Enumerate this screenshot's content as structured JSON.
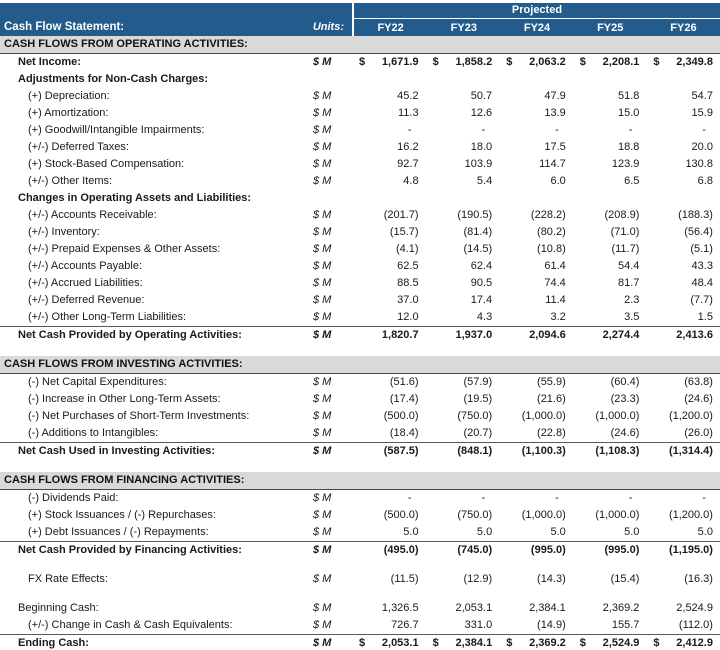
{
  "header": {
    "title": "Cash Flow Statement:",
    "units_label": "Units:",
    "projected_label": "Projected",
    "columns": [
      "FY22",
      "FY23",
      "FY24",
      "FY25",
      "FY26"
    ],
    "colors": {
      "header_bg": "#235C8C",
      "header_text": "#FFFFFF",
      "section_bg": "#D9D9D9"
    }
  },
  "rows": [
    {
      "t": "section",
      "label": "CASH FLOWS FROM OPERATING ACTIVITIES:"
    },
    {
      "t": "row",
      "label": "Net Income:",
      "units": "$ M",
      "indent": 1,
      "bold": true,
      "dollar": true,
      "values": [
        "1,671.9",
        "1,858.2",
        "2,063.2",
        "2,208.1",
        "2,349.8"
      ]
    },
    {
      "t": "row",
      "label": "Adjustments for Non-Cash Charges:",
      "indent": 1,
      "bold": true
    },
    {
      "t": "row",
      "label": "(+) Depreciation:",
      "units": "$ M",
      "indent": 2,
      "values": [
        "45.2",
        "50.7",
        "47.9",
        "51.8",
        "54.7"
      ]
    },
    {
      "t": "row",
      "label": "(+) Amortization:",
      "units": "$ M",
      "indent": 2,
      "values": [
        "11.3",
        "12.6",
        "13.9",
        "15.0",
        "15.9"
      ]
    },
    {
      "t": "row",
      "label": "(+) Goodwill/Intangible Impairments:",
      "units": "$ M",
      "indent": 2,
      "values": [
        "-",
        "-",
        "-",
        "-",
        "-"
      ]
    },
    {
      "t": "row",
      "label": "(+/-) Deferred Taxes:",
      "units": "$ M",
      "indent": 2,
      "values": [
        "16.2",
        "18.0",
        "17.5",
        "18.8",
        "20.0"
      ]
    },
    {
      "t": "row",
      "label": "(+) Stock-Based Compensation:",
      "units": "$ M",
      "indent": 2,
      "values": [
        "92.7",
        "103.9",
        "114.7",
        "123.9",
        "130.8"
      ]
    },
    {
      "t": "row",
      "label": "(+/-) Other Items:",
      "units": "$ M",
      "indent": 2,
      "values": [
        "4.8",
        "5.4",
        "6.0",
        "6.5",
        "6.8"
      ]
    },
    {
      "t": "row",
      "label": "Changes in Operating Assets and Liabilities:",
      "indent": 1,
      "bold": true
    },
    {
      "t": "row",
      "label": "(+/-) Accounts Receivable:",
      "units": "$ M",
      "indent": 2,
      "values": [
        "(201.7)",
        "(190.5)",
        "(228.2)",
        "(208.9)",
        "(188.3)"
      ]
    },
    {
      "t": "row",
      "label": "(+/-) Inventory:",
      "units": "$ M",
      "indent": 2,
      "values": [
        "(15.7)",
        "(81.4)",
        "(80.2)",
        "(71.0)",
        "(56.4)"
      ]
    },
    {
      "t": "row",
      "label": "(+/-) Prepaid Expenses & Other Assets:",
      "units": "$ M",
      "indent": 2,
      "values": [
        "(4.1)",
        "(14.5)",
        "(10.8)",
        "(11.7)",
        "(5.1)"
      ]
    },
    {
      "t": "row",
      "label": "(+/-) Accounts Payable:",
      "units": "$ M",
      "indent": 2,
      "values": [
        "62.5",
        "62.4",
        "61.4",
        "54.4",
        "43.3"
      ]
    },
    {
      "t": "row",
      "label": "(+/-) Accrued Liabilities:",
      "units": "$ M",
      "indent": 2,
      "values": [
        "88.5",
        "90.5",
        "74.4",
        "81.7",
        "48.4"
      ]
    },
    {
      "t": "row",
      "label": "(+/-) Deferred Revenue:",
      "units": "$ M",
      "indent": 2,
      "values": [
        "37.0",
        "17.4",
        "11.4",
        "2.3",
        "(7.7)"
      ]
    },
    {
      "t": "row",
      "label": "(+/-) Other Long-Term Liabilities:",
      "units": "$ M",
      "indent": 2,
      "values": [
        "12.0",
        "4.3",
        "3.2",
        "3.5",
        "1.5"
      ]
    },
    {
      "t": "total",
      "label": "Net Cash Provided by Operating Activities:",
      "units": "$ M",
      "indent": 1,
      "values": [
        "1,820.7",
        "1,937.0",
        "2,094.6",
        "2,274.4",
        "2,413.6"
      ]
    },
    {
      "t": "blank"
    },
    {
      "t": "section",
      "label": "CASH FLOWS FROM INVESTING ACTIVITIES:"
    },
    {
      "t": "row",
      "label": "(-) Net Capital Expenditures:",
      "units": "$ M",
      "indent": 2,
      "values": [
        "(51.6)",
        "(57.9)",
        "(55.9)",
        "(60.4)",
        "(63.8)"
      ]
    },
    {
      "t": "row",
      "label": "(-) Increase in Other Long-Term Assets:",
      "units": "$ M",
      "indent": 2,
      "values": [
        "(17.4)",
        "(19.5)",
        "(21.6)",
        "(23.3)",
        "(24.6)"
      ]
    },
    {
      "t": "row",
      "label": "(-) Net Purchases of Short-Term Investments:",
      "units": "$ M",
      "indent": 2,
      "values": [
        "(500.0)",
        "(750.0)",
        "(1,000.0)",
        "(1,000.0)",
        "(1,200.0)"
      ]
    },
    {
      "t": "row",
      "label": "(-) Additions to Intangibles:",
      "units": "$ M",
      "indent": 2,
      "values": [
        "(18.4)",
        "(20.7)",
        "(22.8)",
        "(24.6)",
        "(26.0)"
      ]
    },
    {
      "t": "total",
      "label": "Net Cash Used in Investing Activities:",
      "units": "$ M",
      "indent": 1,
      "values": [
        "(587.5)",
        "(848.1)",
        "(1,100.3)",
        "(1,108.3)",
        "(1,314.4)"
      ]
    },
    {
      "t": "blank"
    },
    {
      "t": "section",
      "label": "CASH FLOWS FROM FINANCING ACTIVITIES:"
    },
    {
      "t": "row",
      "label": "(-) Dividends Paid:",
      "units": "$ M",
      "indent": 2,
      "values": [
        "-",
        "-",
        "-",
        "-",
        "-"
      ]
    },
    {
      "t": "row",
      "label": "(+) Stock Issuances / (-) Repurchases:",
      "units": "$ M",
      "indent": 2,
      "values": [
        "(500.0)",
        "(750.0)",
        "(1,000.0)",
        "(1,000.0)",
        "(1,200.0)"
      ]
    },
    {
      "t": "row",
      "label": "(+) Debt Issuances / (-) Repayments:",
      "units": "$ M",
      "indent": 2,
      "values": [
        "5.0",
        "5.0",
        "5.0",
        "5.0",
        "5.0"
      ]
    },
    {
      "t": "total",
      "label": "Net Cash Provided by Financing Activities:",
      "units": "$ M",
      "indent": 1,
      "values": [
        "(495.0)",
        "(745.0)",
        "(995.0)",
        "(995.0)",
        "(1,195.0)"
      ]
    },
    {
      "t": "blank"
    },
    {
      "t": "row",
      "label": "FX Rate Effects:",
      "units": "$ M",
      "indent": 2,
      "values": [
        "(11.5)",
        "(12.9)",
        "(14.3)",
        "(15.4)",
        "(16.3)"
      ]
    },
    {
      "t": "blank"
    },
    {
      "t": "row",
      "label": "Beginning Cash:",
      "units": "$ M",
      "indent": 1,
      "values": [
        "1,326.5",
        "2,053.1",
        "2,384.1",
        "2,369.2",
        "2,524.9"
      ]
    },
    {
      "t": "row",
      "label": "(+/-) Change in Cash & Cash Equivalents:",
      "units": "$ M",
      "indent": 2,
      "values": [
        "726.7",
        "331.0",
        "(14.9)",
        "155.7",
        "(112.0)"
      ]
    },
    {
      "t": "total",
      "label": "Ending Cash:",
      "units": "$ M",
      "indent": 1,
      "dollar": true,
      "double": true,
      "values": [
        "2,053.1",
        "2,384.1",
        "2,369.2",
        "2,524.9",
        "2,412.9"
      ]
    }
  ]
}
